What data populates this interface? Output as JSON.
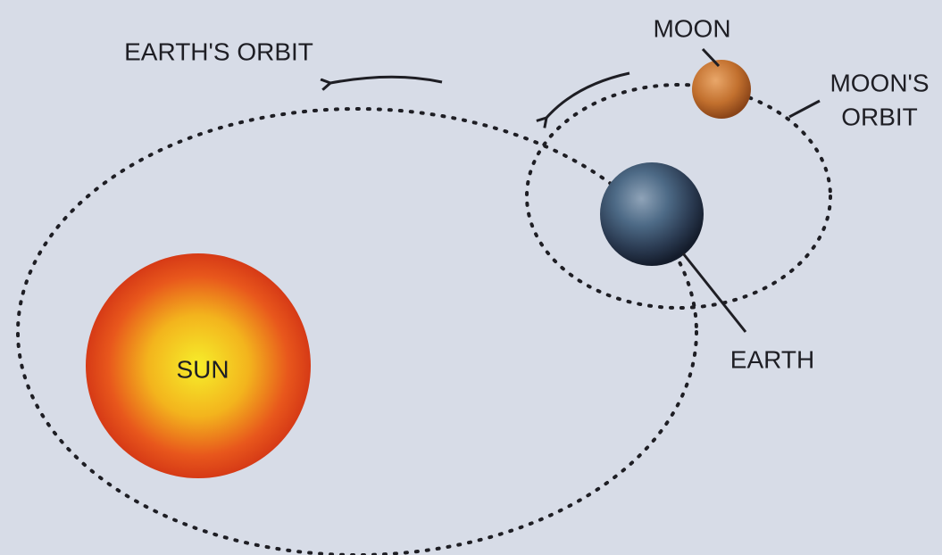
{
  "labels": {
    "earths_orbit": "EARTH'S ORBIT",
    "moon": "MOON",
    "moons_orbit": [
      "MOON'S",
      "ORBIT"
    ],
    "earth": "EARTH",
    "sun": "SUN"
  }
}
